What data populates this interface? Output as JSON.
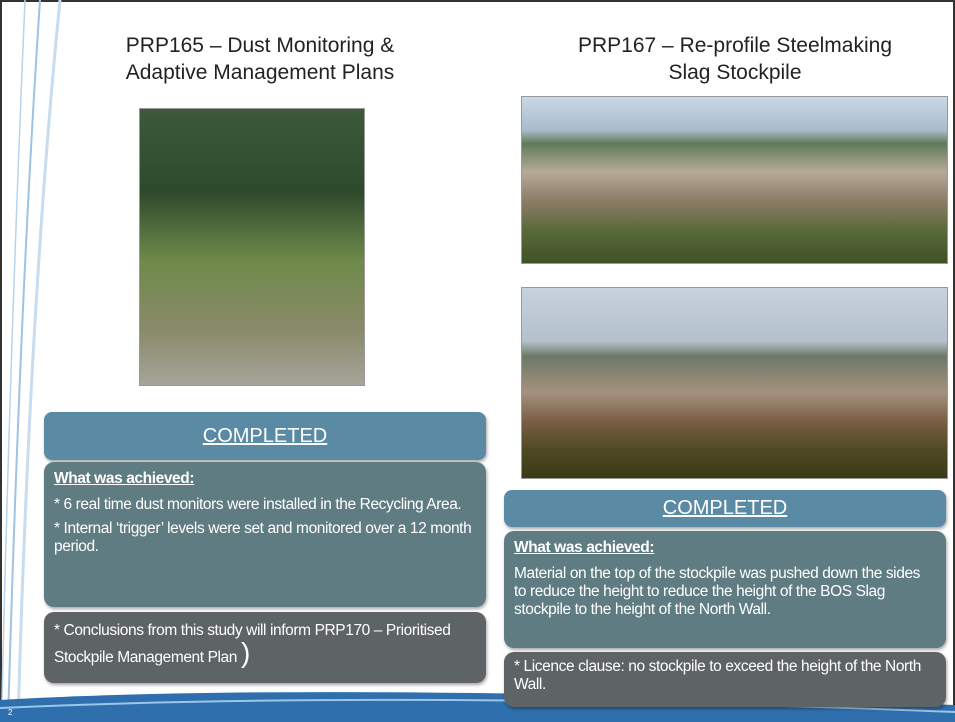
{
  "left": {
    "title_lines": [
      "PRP165 – Dust Monitoring &",
      "Adaptive Management Plans"
    ],
    "status": "COMPLETED",
    "achieved_heading": "What was achieved:",
    "achieved_items": [
      "* 6 real time dust monitors were installed in the Recycling Area.",
      "* Internal ‘trigger’ levels were set and monitored over a 12 month period."
    ],
    "note": "* Conclusions from this study will inform PRP170 – Prioritised Stockpile Management Plan",
    "note_bracket": ")"
  },
  "right": {
    "title_lines": [
      "PRP167 – Re-profile Steelmaking",
      "Slag Stockpile"
    ],
    "status": "COMPLETED",
    "achieved_heading": "What was achieved:",
    "achieved_text": "Material on the top of the stockpile was pushed down the sides to reduce the height to reduce the height of the BOS Slag stockpile to the height of the North Wall.",
    "note": "* Licence clause: no stockpile to exceed the height of the North Wall."
  },
  "page_number": "2"
}
